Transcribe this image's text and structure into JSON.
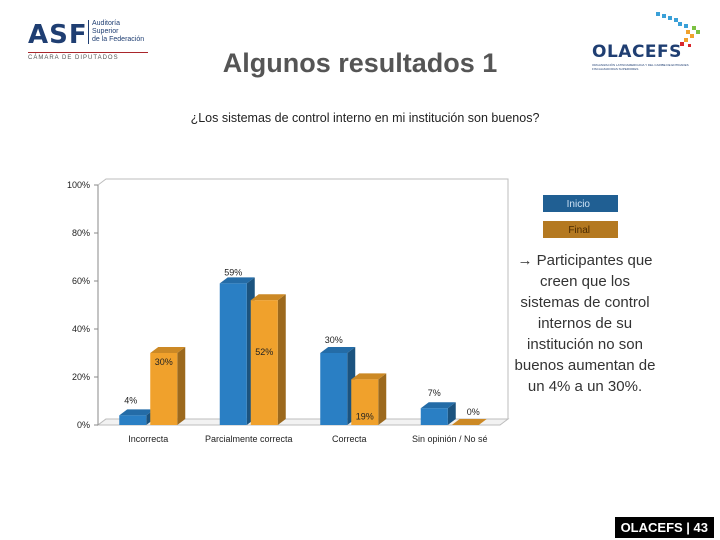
{
  "header": {
    "asf_logo": {
      "mark": "ASF",
      "lines": [
        "Auditoría",
        "Superior",
        "de la Federación"
      ],
      "sub": "CÁMARA DE DIPUTADOS"
    },
    "olacefs_logo": {
      "name": "OLACEFS",
      "sub": "ORGANIZACIÓN LATINOAMERICANA Y DEL CARIBE DE ENTIDADES FISCALIZADORAS SUPERIORES"
    },
    "title": "Algunos resultados 1"
  },
  "question": "¿Los sistemas de control interno en mi institución son buenos?",
  "chart_data": {
    "type": "bar",
    "categories": [
      "Incorrecta",
      "Parcialmente correcta",
      "Correcta",
      "Sin opinión / No sé"
    ],
    "series": [
      {
        "name": "Inicio",
        "color": "#2a7fc4",
        "values": [
          4,
          59,
          30,
          7
        ]
      },
      {
        "name": "Final",
        "color": "#f0a12c",
        "values": [
          30,
          52,
          19,
          0
        ]
      }
    ],
    "ylim": [
      0,
      100
    ],
    "yticks": [
      "0%",
      "20%",
      "40%",
      "60%",
      "80%",
      "100%"
    ],
    "tick_values": [
      0,
      20,
      40,
      60,
      80,
      100
    ],
    "data_labels": [
      {
        "text": "4%",
        "series": 0,
        "cat": 0
      },
      {
        "text": "30%",
        "series": 1,
        "cat": 0
      },
      {
        "text": "59%",
        "series": 0,
        "cat": 1
      },
      {
        "text": "52%",
        "series": 1,
        "cat": 1
      },
      {
        "text": "30%",
        "series": 0,
        "cat": 2
      },
      {
        "text": "19%",
        "series": 1,
        "cat": 2
      },
      {
        "text": "7%",
        "series": 0,
        "cat": 3
      },
      {
        "text": "0%",
        "series": 1,
        "cat": 3
      }
    ],
    "legend_position": "right",
    "grid": false
  },
  "note": "→ Participantes que creen que los sistemas de control internos de su institución no son buenos aumentan de un 4% a un 30%.",
  "footer": "OLACEFS | 43"
}
